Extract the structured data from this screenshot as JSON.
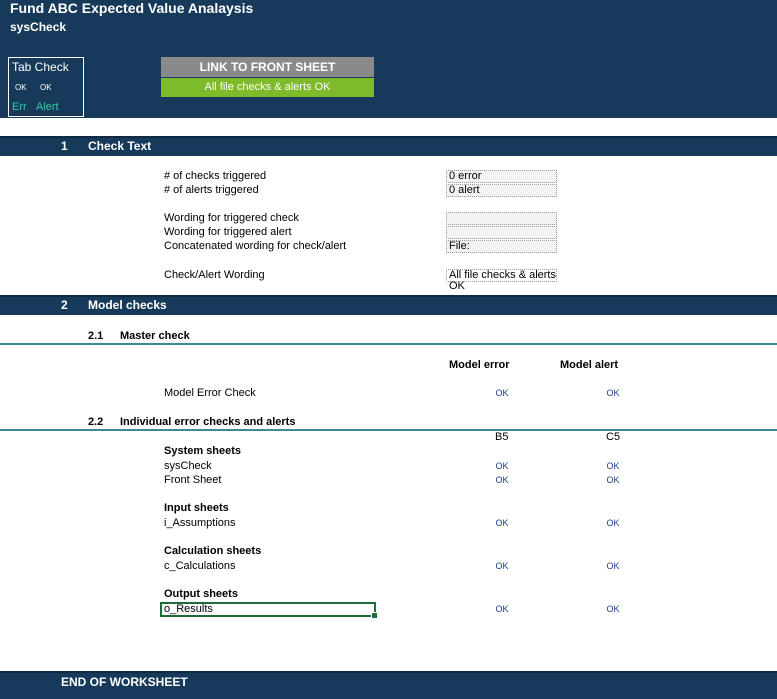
{
  "header": {
    "title": "Fund ABC Expected Value Analaysis",
    "subtitle": "sysCheck",
    "tab_check": {
      "title": "Tab Check",
      "status_err": "OK",
      "status_alert": "OK",
      "label_err": "Err",
      "label_alert": "Alert"
    },
    "link_button": "LINK TO FRONT SHEET",
    "status_banner": "All file checks & alerts OK"
  },
  "section1": {
    "number": "1",
    "title": "Check Text",
    "rows": {
      "checks_label": "# of checks triggered",
      "checks_value": "0 error",
      "alerts_label": "# of alerts triggered",
      "alerts_value": "0 alert",
      "wording_check_label": "Wording for triggered check",
      "wording_check_value": "",
      "wording_alert_label": "Wording for triggered alert",
      "wording_alert_value": "",
      "concat_label": "Concatenated wording for check/alert",
      "concat_value": "File:",
      "final_label": "Check/Alert Wording",
      "final_value": "All file checks & alerts OK"
    }
  },
  "section2": {
    "number": "2",
    "title": "Model checks",
    "sub1": {
      "number": "2.1",
      "title": "Master check"
    },
    "columns": {
      "error": "Model error",
      "alert": "Model alert"
    },
    "master_row": {
      "label": "Model Error Check",
      "error": "OK",
      "alert": "OK"
    },
    "sub2": {
      "number": "2.2",
      "title": "Individual error checks and alerts"
    },
    "refs": {
      "error": "B5",
      "alert": "C5"
    },
    "groups": {
      "system": {
        "title": "System sheets",
        "rows": [
          {
            "label": "sysCheck",
            "error": "OK",
            "alert": "OK"
          },
          {
            "label": "Front Sheet",
            "error": "OK",
            "alert": "OK"
          }
        ]
      },
      "input": {
        "title": "Input sheets",
        "rows": [
          {
            "label": "i_Assumptions",
            "error": "OK",
            "alert": "OK"
          }
        ]
      },
      "calc": {
        "title": "Calculation sheets",
        "rows": [
          {
            "label": "c_Calculations",
            "error": "OK",
            "alert": "OK"
          }
        ]
      },
      "output": {
        "title": "Output sheets",
        "rows": [
          {
            "label": "o_Results",
            "error": "OK",
            "alert": "OK"
          }
        ]
      }
    }
  },
  "footer": {
    "text": "END OF WORKSHEET"
  },
  "colors": {
    "header_bg": "#173a5a",
    "link_btn": "#8a8a8a",
    "ok_banner": "#7dbb2a",
    "accent_teal": "#39c7a8",
    "ok_text": "#1a3d8a"
  }
}
